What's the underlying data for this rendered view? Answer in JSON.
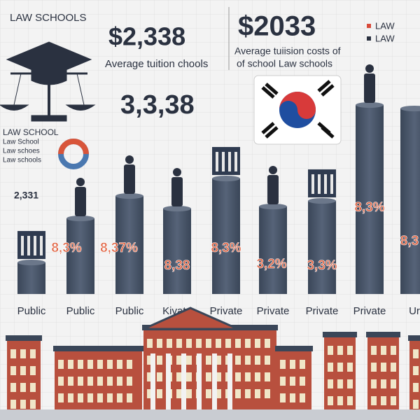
{
  "header": {
    "title": "LAW SCHOOLS"
  },
  "headline_left": {
    "amount": "$2,338",
    "caption": "Average tuition chools",
    "figure": "3,3,38"
  },
  "headline_right": {
    "amount": "$2033",
    "caption_1": "Average tuiision costs of",
    "caption_2": "of school Law schools"
  },
  "legend": [
    "LAW",
    "LAW"
  ],
  "side_panel": {
    "lines": [
      "LAW SCHOOL",
      "Law School",
      "Law schoes",
      "Law schools"
    ],
    "figure": "2,331"
  },
  "bar_labels": [
    "8,3%",
    "8,37%",
    "8,38",
    "8,3%",
    "3,2%",
    "3,3%",
    "8,3%",
    "8,3"
  ],
  "categories": [
    "Public",
    "Public",
    "Public",
    "Kivate",
    "Private",
    "Private",
    "Private",
    "Private",
    "Ur"
  ]
}
